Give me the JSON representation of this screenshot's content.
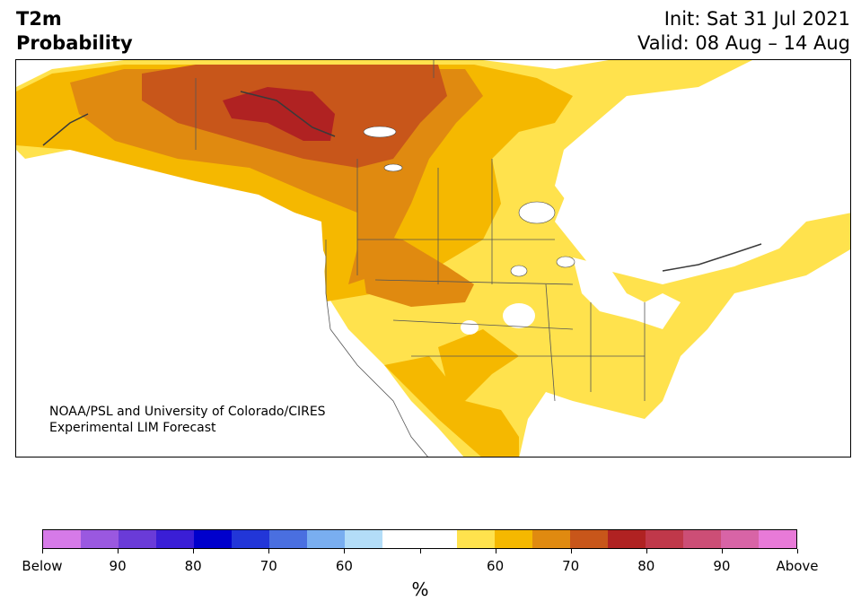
{
  "title": {
    "line1": "T2m",
    "line2": "Probability"
  },
  "dates": {
    "init": "Init: Sat 31 Jul 2021",
    "valid": "Valid: 08 Aug – 14 Aug"
  },
  "credit": {
    "line1": "NOAA/PSL and University of Colorado/CIRES",
    "line2": "Experimental LIM Forecast"
  },
  "colorbar": {
    "colors": [
      "#d67ae8",
      "#9a58e0",
      "#6a3bd8",
      "#3a1ed6",
      "#0000cc",
      "#2236d8",
      "#4a6fe0",
      "#79aef0",
      "#b3ddf8",
      "#ffffff",
      "#ffffff",
      "#ffe24d",
      "#f5b800",
      "#e08a10",
      "#c8561a",
      "#b02222",
      "#c0384a",
      "#cc4e76",
      "#d864a6",
      "#e87ad8"
    ],
    "tick_labels": [
      "Below",
      "90",
      "80",
      "70",
      "60",
      "",
      "60",
      "70",
      "80",
      "90",
      "Above"
    ],
    "unit": "%"
  },
  "map_colors": {
    "land": "#ffffff",
    "ocean": "#ffffff",
    "p60": "#ffe24d",
    "p65": "#f5b800",
    "p70": "#e08a10",
    "p75": "#c8561a",
    "p80": "#b02222",
    "below60": "#b3ddf8"
  }
}
